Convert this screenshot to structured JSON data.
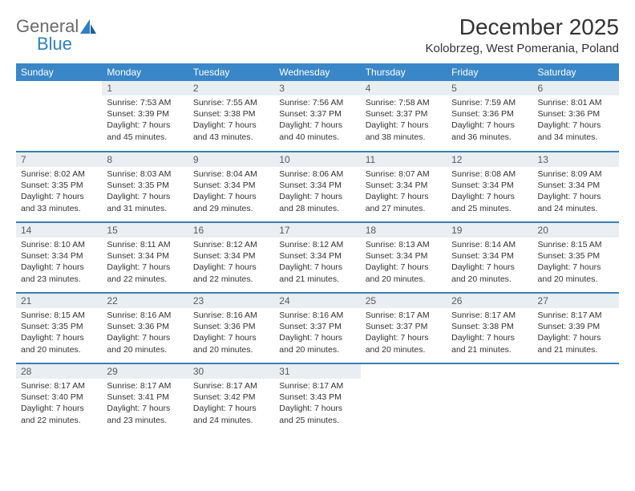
{
  "brand": {
    "line1": "General",
    "line2": "Blue"
  },
  "title": "December 2025",
  "location": "Kolobrzeg, West Pomerania, Poland",
  "colors": {
    "header_bg": "#3a87c7",
    "row_divider": "#3a7fb3",
    "daynum_bg": "#e9eef2",
    "text": "#333333",
    "logo_gray": "#6a6a6a",
    "logo_blue": "#2f7fbf"
  },
  "weekdays": [
    "Sunday",
    "Monday",
    "Tuesday",
    "Wednesday",
    "Thursday",
    "Friday",
    "Saturday"
  ],
  "weeks": [
    [
      {
        "n": "",
        "lines": []
      },
      {
        "n": "1",
        "lines": [
          "Sunrise: 7:53 AM",
          "Sunset: 3:39 PM",
          "Daylight: 7 hours",
          "and 45 minutes."
        ]
      },
      {
        "n": "2",
        "lines": [
          "Sunrise: 7:55 AM",
          "Sunset: 3:38 PM",
          "Daylight: 7 hours",
          "and 43 minutes."
        ]
      },
      {
        "n": "3",
        "lines": [
          "Sunrise: 7:56 AM",
          "Sunset: 3:37 PM",
          "Daylight: 7 hours",
          "and 40 minutes."
        ]
      },
      {
        "n": "4",
        "lines": [
          "Sunrise: 7:58 AM",
          "Sunset: 3:37 PM",
          "Daylight: 7 hours",
          "and 38 minutes."
        ]
      },
      {
        "n": "5",
        "lines": [
          "Sunrise: 7:59 AM",
          "Sunset: 3:36 PM",
          "Daylight: 7 hours",
          "and 36 minutes."
        ]
      },
      {
        "n": "6",
        "lines": [
          "Sunrise: 8:01 AM",
          "Sunset: 3:36 PM",
          "Daylight: 7 hours",
          "and 34 minutes."
        ]
      }
    ],
    [
      {
        "n": "7",
        "lines": [
          "Sunrise: 8:02 AM",
          "Sunset: 3:35 PM",
          "Daylight: 7 hours",
          "and 33 minutes."
        ]
      },
      {
        "n": "8",
        "lines": [
          "Sunrise: 8:03 AM",
          "Sunset: 3:35 PM",
          "Daylight: 7 hours",
          "and 31 minutes."
        ]
      },
      {
        "n": "9",
        "lines": [
          "Sunrise: 8:04 AM",
          "Sunset: 3:34 PM",
          "Daylight: 7 hours",
          "and 29 minutes."
        ]
      },
      {
        "n": "10",
        "lines": [
          "Sunrise: 8:06 AM",
          "Sunset: 3:34 PM",
          "Daylight: 7 hours",
          "and 28 minutes."
        ]
      },
      {
        "n": "11",
        "lines": [
          "Sunrise: 8:07 AM",
          "Sunset: 3:34 PM",
          "Daylight: 7 hours",
          "and 27 minutes."
        ]
      },
      {
        "n": "12",
        "lines": [
          "Sunrise: 8:08 AM",
          "Sunset: 3:34 PM",
          "Daylight: 7 hours",
          "and 25 minutes."
        ]
      },
      {
        "n": "13",
        "lines": [
          "Sunrise: 8:09 AM",
          "Sunset: 3:34 PM",
          "Daylight: 7 hours",
          "and 24 minutes."
        ]
      }
    ],
    [
      {
        "n": "14",
        "lines": [
          "Sunrise: 8:10 AM",
          "Sunset: 3:34 PM",
          "Daylight: 7 hours",
          "and 23 minutes."
        ]
      },
      {
        "n": "15",
        "lines": [
          "Sunrise: 8:11 AM",
          "Sunset: 3:34 PM",
          "Daylight: 7 hours",
          "and 22 minutes."
        ]
      },
      {
        "n": "16",
        "lines": [
          "Sunrise: 8:12 AM",
          "Sunset: 3:34 PM",
          "Daylight: 7 hours",
          "and 22 minutes."
        ]
      },
      {
        "n": "17",
        "lines": [
          "Sunrise: 8:12 AM",
          "Sunset: 3:34 PM",
          "Daylight: 7 hours",
          "and 21 minutes."
        ]
      },
      {
        "n": "18",
        "lines": [
          "Sunrise: 8:13 AM",
          "Sunset: 3:34 PM",
          "Daylight: 7 hours",
          "and 20 minutes."
        ]
      },
      {
        "n": "19",
        "lines": [
          "Sunrise: 8:14 AM",
          "Sunset: 3:34 PM",
          "Daylight: 7 hours",
          "and 20 minutes."
        ]
      },
      {
        "n": "20",
        "lines": [
          "Sunrise: 8:15 AM",
          "Sunset: 3:35 PM",
          "Daylight: 7 hours",
          "and 20 minutes."
        ]
      }
    ],
    [
      {
        "n": "21",
        "lines": [
          "Sunrise: 8:15 AM",
          "Sunset: 3:35 PM",
          "Daylight: 7 hours",
          "and 20 minutes."
        ]
      },
      {
        "n": "22",
        "lines": [
          "Sunrise: 8:16 AM",
          "Sunset: 3:36 PM",
          "Daylight: 7 hours",
          "and 20 minutes."
        ]
      },
      {
        "n": "23",
        "lines": [
          "Sunrise: 8:16 AM",
          "Sunset: 3:36 PM",
          "Daylight: 7 hours",
          "and 20 minutes."
        ]
      },
      {
        "n": "24",
        "lines": [
          "Sunrise: 8:16 AM",
          "Sunset: 3:37 PM",
          "Daylight: 7 hours",
          "and 20 minutes."
        ]
      },
      {
        "n": "25",
        "lines": [
          "Sunrise: 8:17 AM",
          "Sunset: 3:37 PM",
          "Daylight: 7 hours",
          "and 20 minutes."
        ]
      },
      {
        "n": "26",
        "lines": [
          "Sunrise: 8:17 AM",
          "Sunset: 3:38 PM",
          "Daylight: 7 hours",
          "and 21 minutes."
        ]
      },
      {
        "n": "27",
        "lines": [
          "Sunrise: 8:17 AM",
          "Sunset: 3:39 PM",
          "Daylight: 7 hours",
          "and 21 minutes."
        ]
      }
    ],
    [
      {
        "n": "28",
        "lines": [
          "Sunrise: 8:17 AM",
          "Sunset: 3:40 PM",
          "Daylight: 7 hours",
          "and 22 minutes."
        ]
      },
      {
        "n": "29",
        "lines": [
          "Sunrise: 8:17 AM",
          "Sunset: 3:41 PM",
          "Daylight: 7 hours",
          "and 23 minutes."
        ]
      },
      {
        "n": "30",
        "lines": [
          "Sunrise: 8:17 AM",
          "Sunset: 3:42 PM",
          "Daylight: 7 hours",
          "and 24 minutes."
        ]
      },
      {
        "n": "31",
        "lines": [
          "Sunrise: 8:17 AM",
          "Sunset: 3:43 PM",
          "Daylight: 7 hours",
          "and 25 minutes."
        ]
      },
      {
        "n": "",
        "lines": []
      },
      {
        "n": "",
        "lines": []
      },
      {
        "n": "",
        "lines": []
      }
    ]
  ]
}
